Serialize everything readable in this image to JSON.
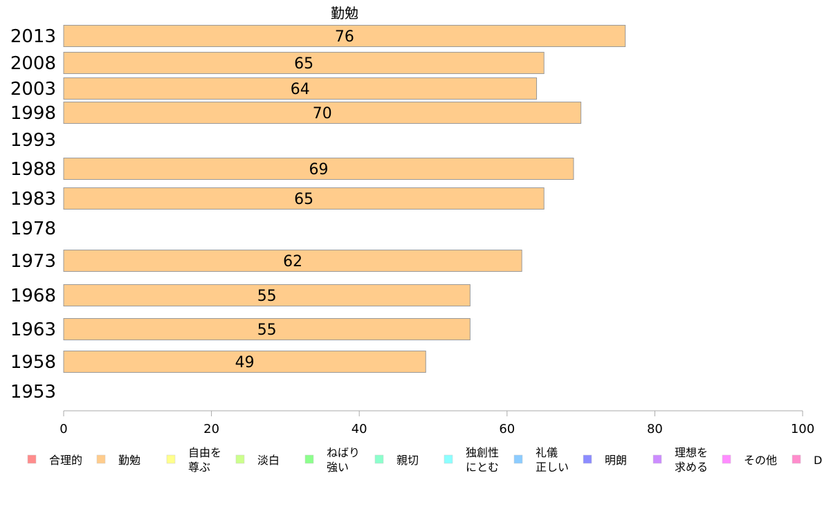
{
  "chart_data": {
    "type": "bar",
    "orientation": "horizontal",
    "title": "勤勉",
    "categories": [
      "2013",
      "2008",
      "2003",
      "1998",
      "1993",
      "1988",
      "1983",
      "1978",
      "1973",
      "1968",
      "1963",
      "1958",
      "1953"
    ],
    "values": [
      76,
      65,
      64,
      70,
      null,
      69,
      65,
      null,
      62,
      55,
      55,
      49,
      null
    ],
    "value_labels": [
      "76",
      "65",
      "64",
      "70",
      "",
      "69",
      "65",
      "",
      "62",
      "55",
      "55",
      "49",
      ""
    ],
    "xlim": [
      0,
      100
    ],
    "xticks": [
      "0",
      "20",
      "40",
      "60",
      "80",
      "100"
    ],
    "bar_color": "#FFCC8C",
    "bar_border": "#999999",
    "grid": false,
    "legend_position": "bottom",
    "legend": [
      {
        "label": [
          "合理的"
        ],
        "color": "#FF8C8C"
      },
      {
        "label": [
          "勤勉"
        ],
        "color": "#FFCC8C"
      },
      {
        "label": [
          "自由を",
          "尊ぶ"
        ],
        "color": "#FFFF8C"
      },
      {
        "label": [
          "淡白"
        ],
        "color": "#CCFF8C"
      },
      {
        "label": [
          "ねばり",
          "強い"
        ],
        "color": "#8CFF8C"
      },
      {
        "label": [
          "親切"
        ],
        "color": "#8CFFCC"
      },
      {
        "label": [
          "独創性",
          "にとむ"
        ],
        "color": "#8CFFFF"
      },
      {
        "label": [
          "礼儀",
          "正しい"
        ],
        "color": "#8CCCFF"
      },
      {
        "label": [
          "明朗"
        ],
        "color": "#8C8CFF"
      },
      {
        "label": [
          "理想を",
          "求める"
        ],
        "color": "#CC8CFF"
      },
      {
        "label": [
          "その他"
        ],
        "color": "#FF8CFF"
      },
      {
        "label": [
          "D"
        ],
        "color": "#FF8CCC"
      }
    ]
  }
}
